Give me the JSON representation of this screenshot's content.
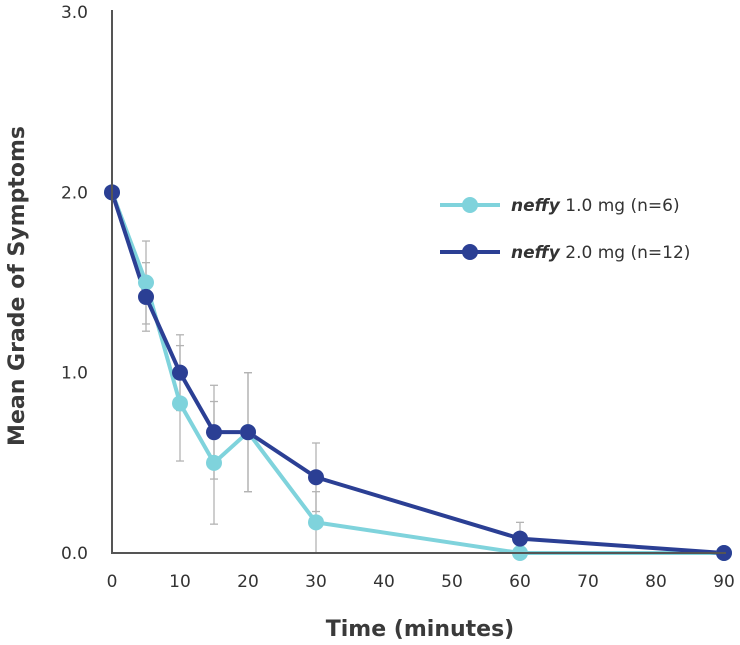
{
  "chart_data": {
    "type": "line",
    "xlabel": "Time (minutes)",
    "ylabel": "Mean Grade of Symptoms",
    "xlim": [
      0,
      90
    ],
    "ylim": [
      0,
      3
    ],
    "x_ticks": [
      "0",
      "10",
      "20",
      "30",
      "40",
      "50",
      "60",
      "70",
      "80",
      "90"
    ],
    "y_ticks": [
      "0.0",
      "1.0",
      "2.0",
      "3.0"
    ],
    "grid": false,
    "legend_position": "right",
    "series": [
      {
        "name_brand": "neffy",
        "name_rest": " 1.0 mg (n=6)",
        "color": "#7fd3dc",
        "points": [
          {
            "x": 0,
            "y": 2.0,
            "err": null
          },
          {
            "x": 5,
            "y": 1.5,
            "err": 0.23
          },
          {
            "x": 10,
            "y": 0.83,
            "err": 0.32
          },
          {
            "x": 15,
            "y": 0.5,
            "err": 0.34
          },
          {
            "x": 20,
            "y": 0.67,
            "err": 0.33
          },
          {
            "x": 30,
            "y": 0.17,
            "err": 0.17
          },
          {
            "x": 60,
            "y": 0.0,
            "err": null
          },
          {
            "x": 90,
            "y": 0.0,
            "err": null
          }
        ]
      },
      {
        "name_brand": "neffy",
        "name_rest": " 2.0 mg (n=12)",
        "color": "#2b3f94",
        "points": [
          {
            "x": 0,
            "y": 2.0,
            "err": null
          },
          {
            "x": 5,
            "y": 1.42,
            "err": 0.19
          },
          {
            "x": 10,
            "y": 1.0,
            "err": 0.21
          },
          {
            "x": 15,
            "y": 0.67,
            "err": 0.26
          },
          {
            "x": 20,
            "y": 0.67,
            "err": 0.33
          },
          {
            "x": 30,
            "y": 0.42,
            "err": 0.19
          },
          {
            "x": 60,
            "y": 0.08,
            "err": 0.09
          },
          {
            "x": 90,
            "y": 0.0,
            "err": null
          }
        ]
      }
    ]
  }
}
